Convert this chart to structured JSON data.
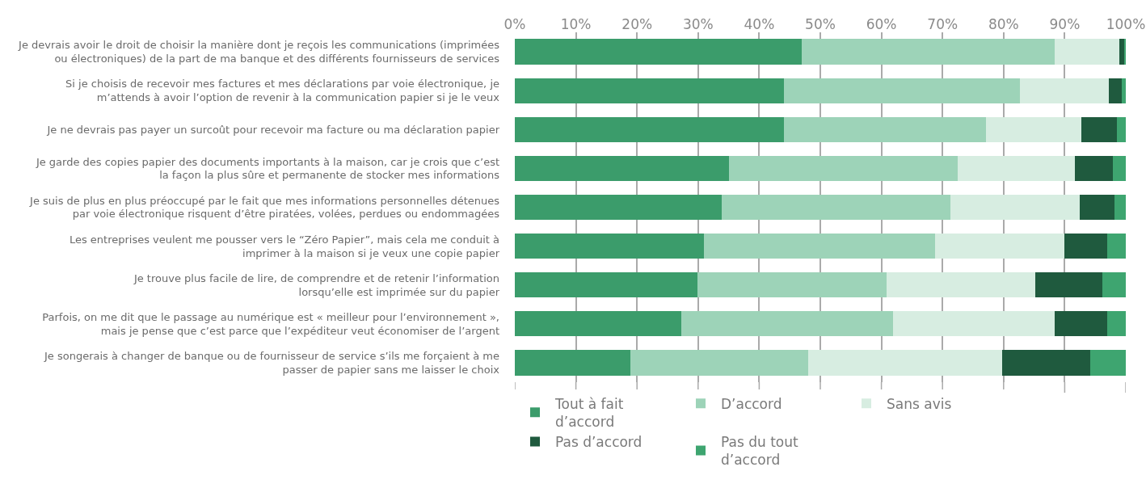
{
  "chart_data": {
    "type": "bar",
    "orientation": "horizontal",
    "stacked": true,
    "categories": [
      "Je devrais avoir le droit de choisir la manière dont je reçois les communications (imprimées\nou électroniques) de la part de ma banque et des différents fournisseurs de services",
      "Si je choisis de recevoir mes factures et mes déclarations par voie électronique, je\nm’attends à avoir l’option de revenir à la communication papier si je le veux",
      "Je ne devrais pas payer un surcoût pour recevoir ma facture ou ma déclaration papier",
      "Je garde des copies papier des documents importants à la maison, car je crois que c’est\nla façon la plus sûre et permanente de stocker mes informations",
      "Je suis de plus en plus préoccupé par le fait que mes informations personnelles détenues\npar voie électronique risquent d’être piratées, volées, perdues ou endommagées",
      "Les entreprises veulent me pousser vers le “Zéro Papier”, mais cela me conduit à\nimprimer à la maison si je veux une copie papier",
      "Je trouve plus facile de lire, de comprendre et de retenir l’information\nlorsqu’elle est imprimée sur du papier",
      "Parfois, on me dit que le passage au numérique est « meilleur pour l’environnement »,\nmais je pense que c’est parce que l’expéditeur veut économiser de l’argent",
      "Je songerais à changer de banque ou de fournisseur de service s’ils me forçaient à me\npasser de papier sans me laisser le choix"
    ],
    "series": [
      {
        "name": "Tout à fait\nd’accord",
        "color": "#3b9c6b",
        "values": [
          46.9,
          44.1,
          44.0,
          35.1,
          33.8,
          31.0,
          29.9,
          27.2,
          18.9
        ]
      },
      {
        "name": "D’accord",
        "color": "#9dd3b8",
        "values": [
          41.5,
          38.6,
          33.1,
          37.4,
          37.5,
          37.8,
          30.9,
          34.7,
          29.1
        ]
      },
      {
        "name": "Sans avis",
        "color": "#d7ede1",
        "values": [
          10.6,
          14.5,
          15.6,
          19.2,
          21.1,
          21.1,
          24.4,
          26.4,
          31.7
        ]
      },
      {
        "name": "Pas d’accord",
        "color": "#1f5a3e",
        "values": [
          0.7,
          2.2,
          5.8,
          6.2,
          5.8,
          7.1,
          10.9,
          8.6,
          14.5
        ]
      },
      {
        "name": "Pas du tout\nd’accord",
        "color": "#3ea570",
        "values": [
          0.3,
          0.6,
          1.5,
          2.1,
          1.8,
          3.0,
          3.9,
          3.1,
          5.8
        ]
      }
    ],
    "xlim": [
      0,
      100
    ],
    "xticks": [
      {
        "value": 0,
        "label": "0%"
      },
      {
        "value": 10,
        "label": "10%"
      },
      {
        "value": 20,
        "label": "20%"
      },
      {
        "value": 30,
        "label": "30%"
      },
      {
        "value": 40,
        "label": "40%"
      },
      {
        "value": 50,
        "label": "50%"
      },
      {
        "value": 60,
        "label": "60%"
      },
      {
        "value": 70,
        "label": "70%"
      },
      {
        "value": 80,
        "label": "80%"
      },
      {
        "value": 90,
        "label": "90%"
      },
      {
        "value": 100,
        "label": "100%"
      }
    ],
    "grid": "x",
    "legend": "bottom"
  }
}
